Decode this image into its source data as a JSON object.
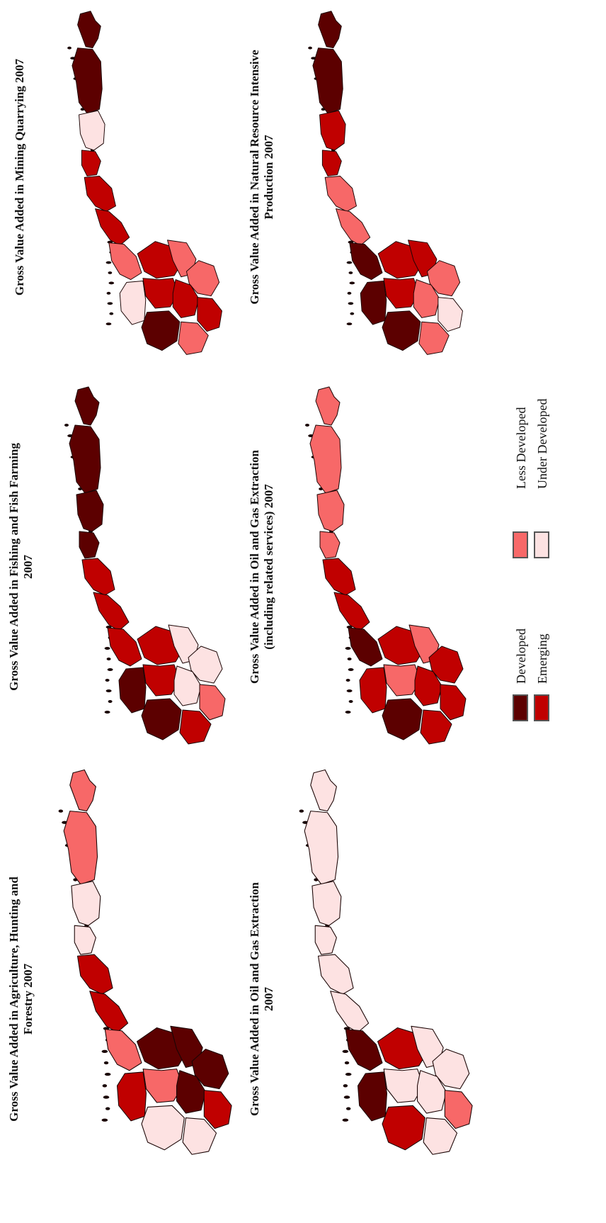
{
  "colors": {
    "developed": "#5c0000",
    "emerging": "#c00000",
    "less_developed": "#f76868",
    "under_developed": "#fde2e2"
  },
  "panels": [
    {
      "id": "agriculture",
      "title": "Gross Value Added in Agriculture, Hunting and\nForestry  2007",
      "classes": [
        "less_developed",
        "less_developed",
        "under_developed",
        "under_developed",
        "emerging",
        "emerging",
        "less_developed",
        "developed",
        "developed",
        "developed",
        "less_developed",
        "developed",
        "emerging",
        "emerging",
        "under_developed",
        "under_developed"
      ]
    },
    {
      "id": "fishing",
      "title": "Gross Value Added in Fishing and Fish Farming\n2007",
      "classes": [
        "developed",
        "developed",
        "developed",
        "developed",
        "emerging",
        "emerging",
        "emerging",
        "emerging",
        "under_developed",
        "under_developed",
        "emerging",
        "under_developed",
        "less_developed",
        "developed",
        "developed",
        "emerging"
      ]
    },
    {
      "id": "mining",
      "title": "Gross Value Added in Mining Quarrying 2007",
      "classes": [
        "developed",
        "developed",
        "under_developed",
        "emerging",
        "emerging",
        "emerging",
        "less_developed",
        "emerging",
        "less_developed",
        "less_developed",
        "emerging",
        "emerging",
        "emerging",
        "under_developed",
        "developed",
        "less_developed"
      ]
    },
    {
      "id": "oil_gas",
      "title": "Gross Value Added in Oil and Gas Extraction\n2007",
      "classes": [
        "under_developed",
        "under_developed",
        "under_developed",
        "under_developed",
        "under_developed",
        "under_developed",
        "developed",
        "emerging",
        "under_developed",
        "under_developed",
        "under_developed",
        "under_developed",
        "less_developed",
        "developed",
        "emerging",
        "under_developed"
      ]
    },
    {
      "id": "oil_gas_services",
      "title": "Gross Value Added in Oil and Gas Extraction\n(including  related services) 2007",
      "classes": [
        "less_developed",
        "less_developed",
        "less_developed",
        "less_developed",
        "emerging",
        "emerging",
        "developed",
        "emerging",
        "less_developed",
        "emerging",
        "less_developed",
        "emerging",
        "emerging",
        "emerging",
        "developed",
        "emerging"
      ]
    },
    {
      "id": "natural_resource",
      "title": "Gross Value Added in Natural Resource Intensive\nProduction 2007",
      "classes": [
        "developed",
        "developed",
        "emerging",
        "emerging",
        "less_developed",
        "less_developed",
        "developed",
        "emerging",
        "emerging",
        "less_developed",
        "emerging",
        "less_developed",
        "under_developed",
        "developed",
        "developed",
        "less_developed"
      ]
    }
  ],
  "legend": {
    "developed": "Developed",
    "emerging": "Emerging",
    "less_developed": "Less Developed",
    "under_developed": "Under Developed"
  }
}
